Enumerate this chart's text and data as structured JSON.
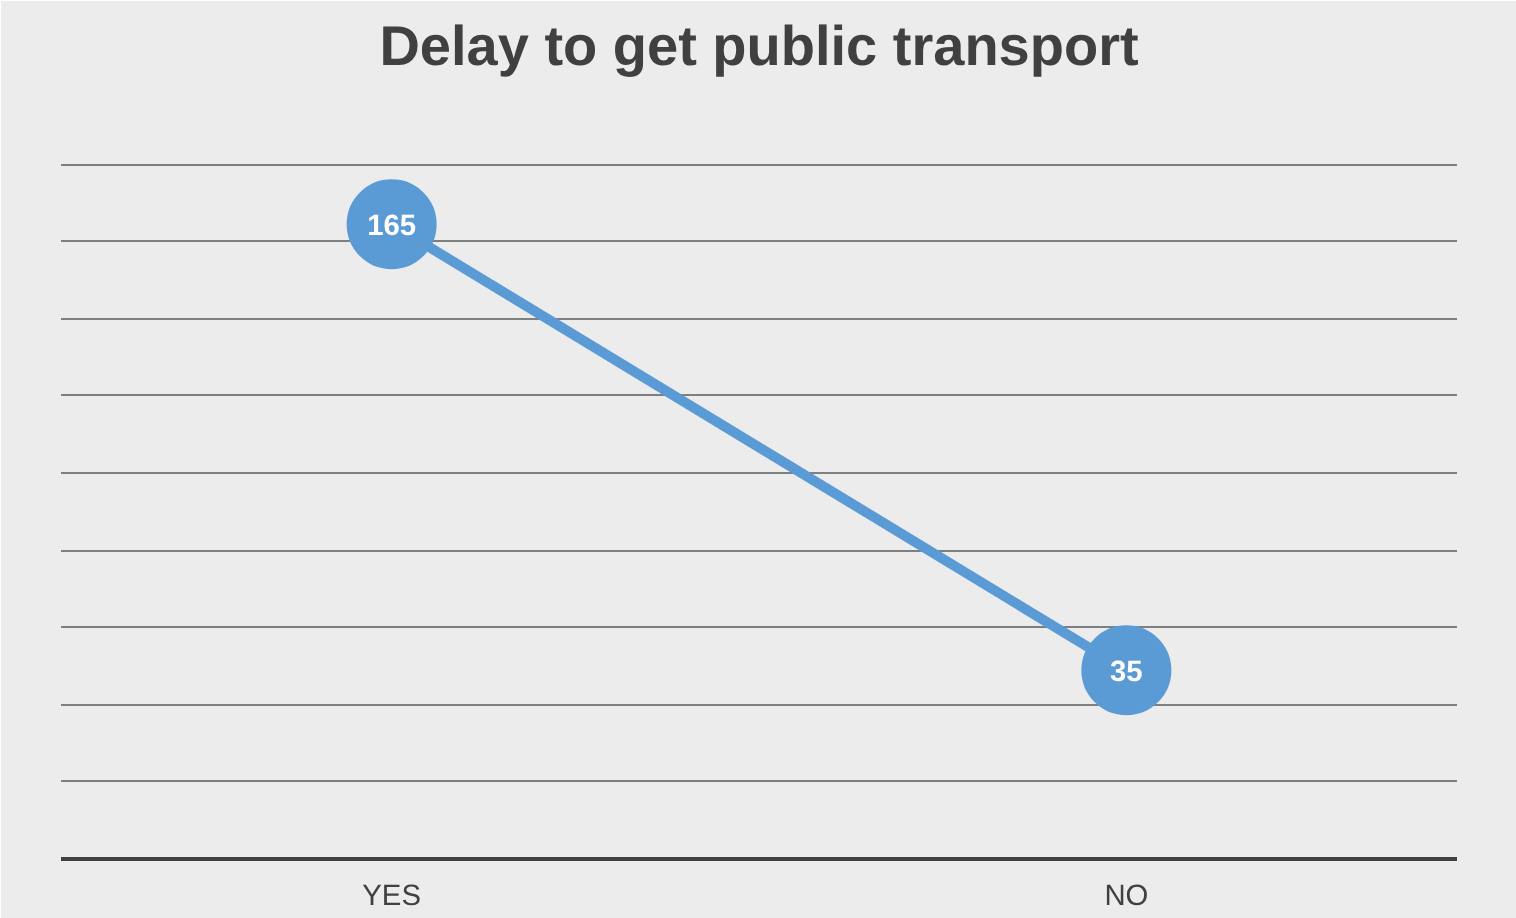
{
  "chart_data": {
    "type": "line",
    "title": "Delay to get public transport",
    "categories": [
      "YES",
      "NO"
    ],
    "series": [
      {
        "color": "#5b9bd5",
        "values": [
          165,
          35
        ]
      }
    ],
    "ylim": [
      -20,
      205
    ],
    "yticks": [
      {
        "value": -20,
        "label": null
      },
      {
        "value": 2.5,
        "label": null
      },
      {
        "value": 25,
        "label": null
      },
      {
        "value": 47.5,
        "label": null
      },
      {
        "value": 70,
        "label": null
      },
      {
        "value": 92.5,
        "label": null
      },
      {
        "value": 115,
        "label": null
      },
      {
        "value": 137.5,
        "label": null
      },
      {
        "value": 160,
        "label": null
      },
      {
        "value": 182.5,
        "label": null
      },
      {
        "value": 205,
        "label": null
      }
    ],
    "grid": "y",
    "tick_labels": "x",
    "marker": "circle",
    "line_style": "solid",
    "data_labels": true
  }
}
